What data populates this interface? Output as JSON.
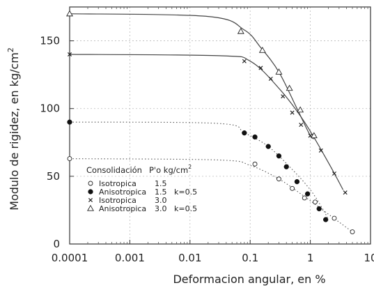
{
  "chart_data": {
    "type": "scatter",
    "xlabel": "Deformacion angular, en %",
    "ylabel": "Modulo de rigidez, en kg/cm",
    "ylabel_superscript": "2",
    "x_scale": "log",
    "xlim": [
      0.0001,
      10
    ],
    "ylim": [
      0,
      175
    ],
    "x_ticks": [
      {
        "value": 0.0001,
        "label": "0.0001"
      },
      {
        "value": 0.001,
        "label": "0.001"
      },
      {
        "value": 0.01,
        "label": "0.01"
      },
      {
        "value": 0.1,
        "label": "0.1"
      },
      {
        "value": 1,
        "label": "1"
      },
      {
        "value": 10,
        "label": "10"
      }
    ],
    "y_ticks": [
      {
        "value": 0,
        "label": "0"
      },
      {
        "value": 50,
        "label": "50"
      },
      {
        "value": 100,
        "label": "100"
      },
      {
        "value": 150,
        "label": "150"
      }
    ],
    "grid": true,
    "legend": {
      "placement": "bottom-left",
      "title_left": "Consolidación",
      "title_right": "P'o kg/cm",
      "title_right_superscript": "2",
      "entries": [
        {
          "marker": "open-circle",
          "label": "Isotropica",
          "value": "1.5",
          "extra": ""
        },
        {
          "marker": "filled-circle",
          "label": "Anisotropica",
          "value": "1.5",
          "extra": "k=0.5"
        },
        {
          "marker": "cross",
          "label": "Isotropica",
          "value": "3.0",
          "extra": ""
        },
        {
          "marker": "open-triangle",
          "label": "Anisotropica",
          "value": "3.0",
          "extra": "k=0.5"
        }
      ]
    },
    "series": [
      {
        "marker": "open-circle",
        "curve_style": "dotted",
        "curve": [
          [
            0.0001,
            63
          ],
          [
            0.03,
            62
          ],
          [
            0.1,
            58
          ],
          [
            0.3,
            48
          ],
          [
            0.8,
            35
          ],
          [
            2,
            22
          ],
          [
            3.5,
            14
          ],
          [
            5,
            9
          ]
        ],
        "points": [
          [
            0.0001,
            63
          ],
          [
            0.12,
            59
          ],
          [
            0.3,
            48
          ],
          [
            0.5,
            41
          ],
          [
            0.8,
            34
          ],
          [
            1.2,
            31
          ],
          [
            2.5,
            19
          ],
          [
            5,
            9
          ]
        ]
      },
      {
        "marker": "filled-circle",
        "curve_style": "dotted",
        "curve": [
          [
            0.0001,
            90
          ],
          [
            0.03,
            89
          ],
          [
            0.08,
            82
          ],
          [
            0.2,
            72
          ],
          [
            0.5,
            55
          ],
          [
            1,
            40
          ],
          [
            1.6,
            26
          ],
          [
            2,
            18
          ]
        ],
        "points": [
          [
            0.0001,
            90
          ],
          [
            0.08,
            82
          ],
          [
            0.12,
            79
          ],
          [
            0.2,
            72
          ],
          [
            0.3,
            65
          ],
          [
            0.4,
            57
          ],
          [
            0.6,
            46
          ],
          [
            0.9,
            37
          ],
          [
            1.4,
            26
          ],
          [
            1.8,
            18
          ]
        ]
      },
      {
        "marker": "cross",
        "curve_style": "solid",
        "curve": [
          [
            0.0001,
            140
          ],
          [
            0.03,
            139
          ],
          [
            0.1,
            135
          ],
          [
            0.3,
            115
          ],
          [
            0.8,
            90
          ],
          [
            2,
            60
          ],
          [
            3.5,
            40
          ]
        ],
        "points": [
          [
            0.0001,
            140
          ],
          [
            0.08,
            135
          ],
          [
            0.15,
            130
          ],
          [
            0.22,
            122
          ],
          [
            0.35,
            109
          ],
          [
            0.5,
            97
          ],
          [
            0.7,
            88
          ],
          [
            1,
            80
          ],
          [
            1.5,
            69
          ],
          [
            2.5,
            52
          ],
          [
            3.8,
            38
          ]
        ]
      },
      {
        "marker": "open-triangle",
        "curve_style": "solid",
        "curve": [
          [
            0.0001,
            170
          ],
          [
            0.02,
            168
          ],
          [
            0.08,
            158
          ],
          [
            0.15,
            145
          ],
          [
            0.3,
            127
          ],
          [
            0.6,
            100
          ],
          [
            1,
            80
          ],
          [
            1.2,
            78
          ]
        ],
        "points": [
          [
            0.0001,
            170
          ],
          [
            0.07,
            157
          ],
          [
            0.16,
            143
          ],
          [
            0.3,
            127
          ],
          [
            0.45,
            115
          ],
          [
            0.68,
            99
          ],
          [
            1.15,
            80
          ]
        ]
      }
    ]
  }
}
